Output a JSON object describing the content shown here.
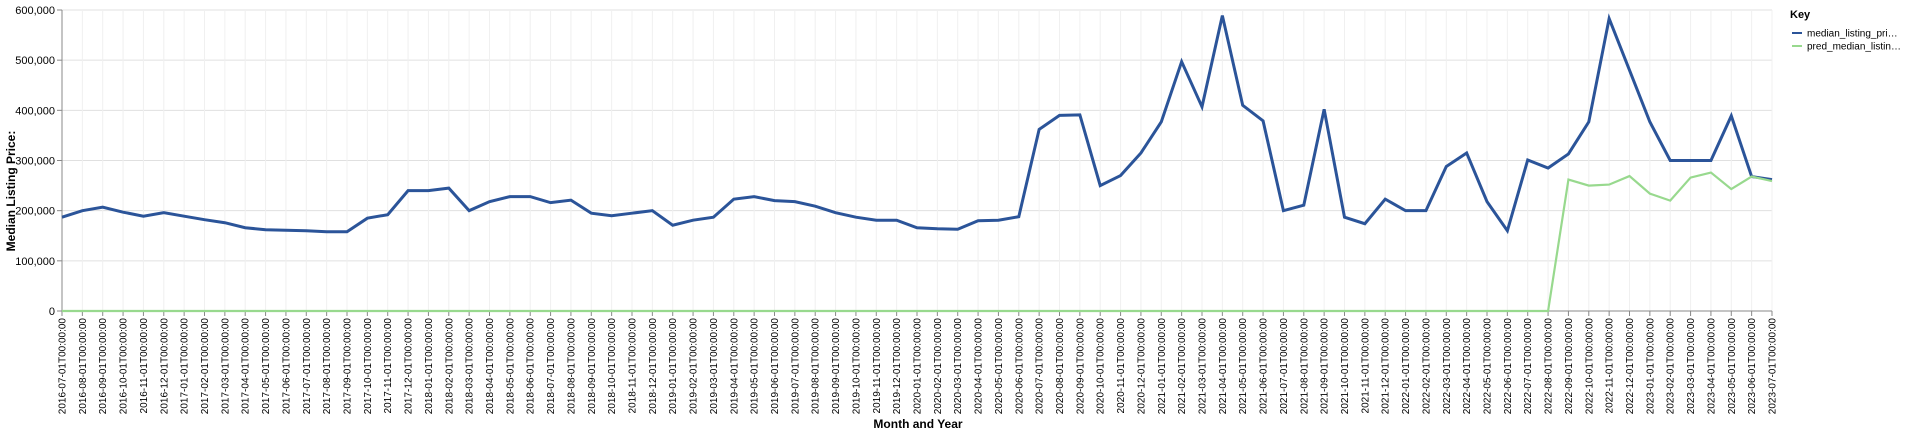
{
  "chart_data": {
    "type": "line",
    "xlabel": "Month and Year",
    "ylabel": "Median Listing Price:",
    "ylim": [
      0,
      600000
    ],
    "y_ticks": [
      "0",
      "100,000",
      "200,000",
      "300,000",
      "400,000",
      "500,000",
      "600,000"
    ],
    "y_tick_values": [
      0,
      100000,
      200000,
      300000,
      400000,
      500000,
      600000
    ],
    "grid": true,
    "legend": {
      "title": "Key",
      "placement": "right",
      "entries": [
        "median_listing_pri…",
        "pred_median_listin…"
      ]
    },
    "categories": [
      "2016-07-01T00:00:00",
      "2016-08-01T00:00:00",
      "2016-09-01T00:00:00",
      "2016-10-01T00:00:00",
      "2016-11-01T00:00:00",
      "2016-12-01T00:00:00",
      "2017-01-01T00:00:00",
      "2017-02-01T00:00:00",
      "2017-03-01T00:00:00",
      "2017-04-01T00:00:00",
      "2017-05-01T00:00:00",
      "2017-06-01T00:00:00",
      "2017-07-01T00:00:00",
      "2017-08-01T00:00:00",
      "2017-09-01T00:00:00",
      "2017-10-01T00:00:00",
      "2017-11-01T00:00:00",
      "2017-12-01T00:00:00",
      "2018-01-01T00:00:00",
      "2018-02-01T00:00:00",
      "2018-03-01T00:00:00",
      "2018-04-01T00:00:00",
      "2018-05-01T00:00:00",
      "2018-06-01T00:00:00",
      "2018-07-01T00:00:00",
      "2018-08-01T00:00:00",
      "2018-09-01T00:00:00",
      "2018-10-01T00:00:00",
      "2018-11-01T00:00:00",
      "2018-12-01T00:00:00",
      "2019-01-01T00:00:00",
      "2019-02-01T00:00:00",
      "2019-03-01T00:00:00",
      "2019-04-01T00:00:00",
      "2019-05-01T00:00:00",
      "2019-06-01T00:00:00",
      "2019-07-01T00:00:00",
      "2019-08-01T00:00:00",
      "2019-09-01T00:00:00",
      "2019-10-01T00:00:00",
      "2019-11-01T00:00:00",
      "2019-12-01T00:00:00",
      "2020-01-01T00:00:00",
      "2020-02-01T00:00:00",
      "2020-03-01T00:00:00",
      "2020-04-01T00:00:00",
      "2020-05-01T00:00:00",
      "2020-06-01T00:00:00",
      "2020-07-01T00:00:00",
      "2020-08-01T00:00:00",
      "2020-09-01T00:00:00",
      "2020-10-01T00:00:00",
      "2020-11-01T00:00:00",
      "2020-12-01T00:00:00",
      "2021-01-01T00:00:00",
      "2021-02-01T00:00:00",
      "2021-03-01T00:00:00",
      "2021-04-01T00:00:00",
      "2021-05-01T00:00:00",
      "2021-06-01T00:00:00",
      "2021-07-01T00:00:00",
      "2021-08-01T00:00:00",
      "2021-09-01T00:00:00",
      "2021-10-01T00:00:00",
      "2021-11-01T00:00:00",
      "2021-12-01T00:00:00",
      "2022-01-01T00:00:00",
      "2022-02-01T00:00:00",
      "2022-03-01T00:00:00",
      "2022-04-01T00:00:00",
      "2022-05-01T00:00:00",
      "2022-06-01T00:00:00",
      "2022-07-01T00:00:00",
      "2022-08-01T00:00:00",
      "2022-09-01T00:00:00",
      "2022-10-01T00:00:00",
      "2022-11-01T00:00:00",
      "2022-12-01T00:00:00",
      "2023-01-01T00:00:00",
      "2023-02-01T00:00:00",
      "2023-03-01T00:00:00",
      "2023-04-01T00:00:00",
      "2023-05-01T00:00:00",
      "2023-06-01T00:00:00",
      "2023-07-01T00:00:00"
    ],
    "series": [
      {
        "name": "median_listing_pri…",
        "color": "#2b5499",
        "values": [
          187000,
          200000,
          207000,
          197000,
          189000,
          196000,
          189000,
          182000,
          176000,
          166000,
          162000,
          161000,
          160000,
          158000,
          158000,
          185000,
          192000,
          240000,
          240000,
          245000,
          200000,
          218000,
          228000,
          228000,
          216000,
          221000,
          195000,
          190000,
          195000,
          200000,
          171000,
          181000,
          187000,
          223000,
          228000,
          220000,
          218000,
          209000,
          196000,
          187000,
          181000,
          181000,
          166000,
          164000,
          163000,
          180000,
          181000,
          188000,
          362000,
          390000,
          391000,
          250000,
          270000,
          315000,
          377000,
          497000,
          407000,
          589000,
          410000,
          379000,
          200000,
          211000,
          402000,
          187000,
          174000,
          223000,
          200000,
          200000,
          288000,
          315000,
          218000,
          160000,
          301000,
          285000,
          313000,
          377000,
          583000,
          480000,
          377000,
          300000,
          300000,
          300000,
          389000,
          268000,
          262000
        ]
      },
      {
        "name": "pred_median_listin…",
        "color": "#98d98e",
        "values": [
          0,
          0,
          0,
          0,
          0,
          0,
          0,
          0,
          0,
          0,
          0,
          0,
          0,
          0,
          0,
          0,
          0,
          0,
          0,
          0,
          0,
          0,
          0,
          0,
          0,
          0,
          0,
          0,
          0,
          0,
          0,
          0,
          0,
          0,
          0,
          0,
          0,
          0,
          0,
          0,
          0,
          0,
          0,
          0,
          0,
          0,
          0,
          0,
          0,
          0,
          0,
          0,
          0,
          0,
          0,
          0,
          0,
          0,
          0,
          0,
          0,
          0,
          0,
          0,
          0,
          0,
          0,
          0,
          0,
          0,
          0,
          0,
          0,
          0,
          262000,
          250000,
          252000,
          269000,
          234000,
          220000,
          266000,
          276000,
          243000,
          268000,
          259000
        ]
      }
    ]
  }
}
